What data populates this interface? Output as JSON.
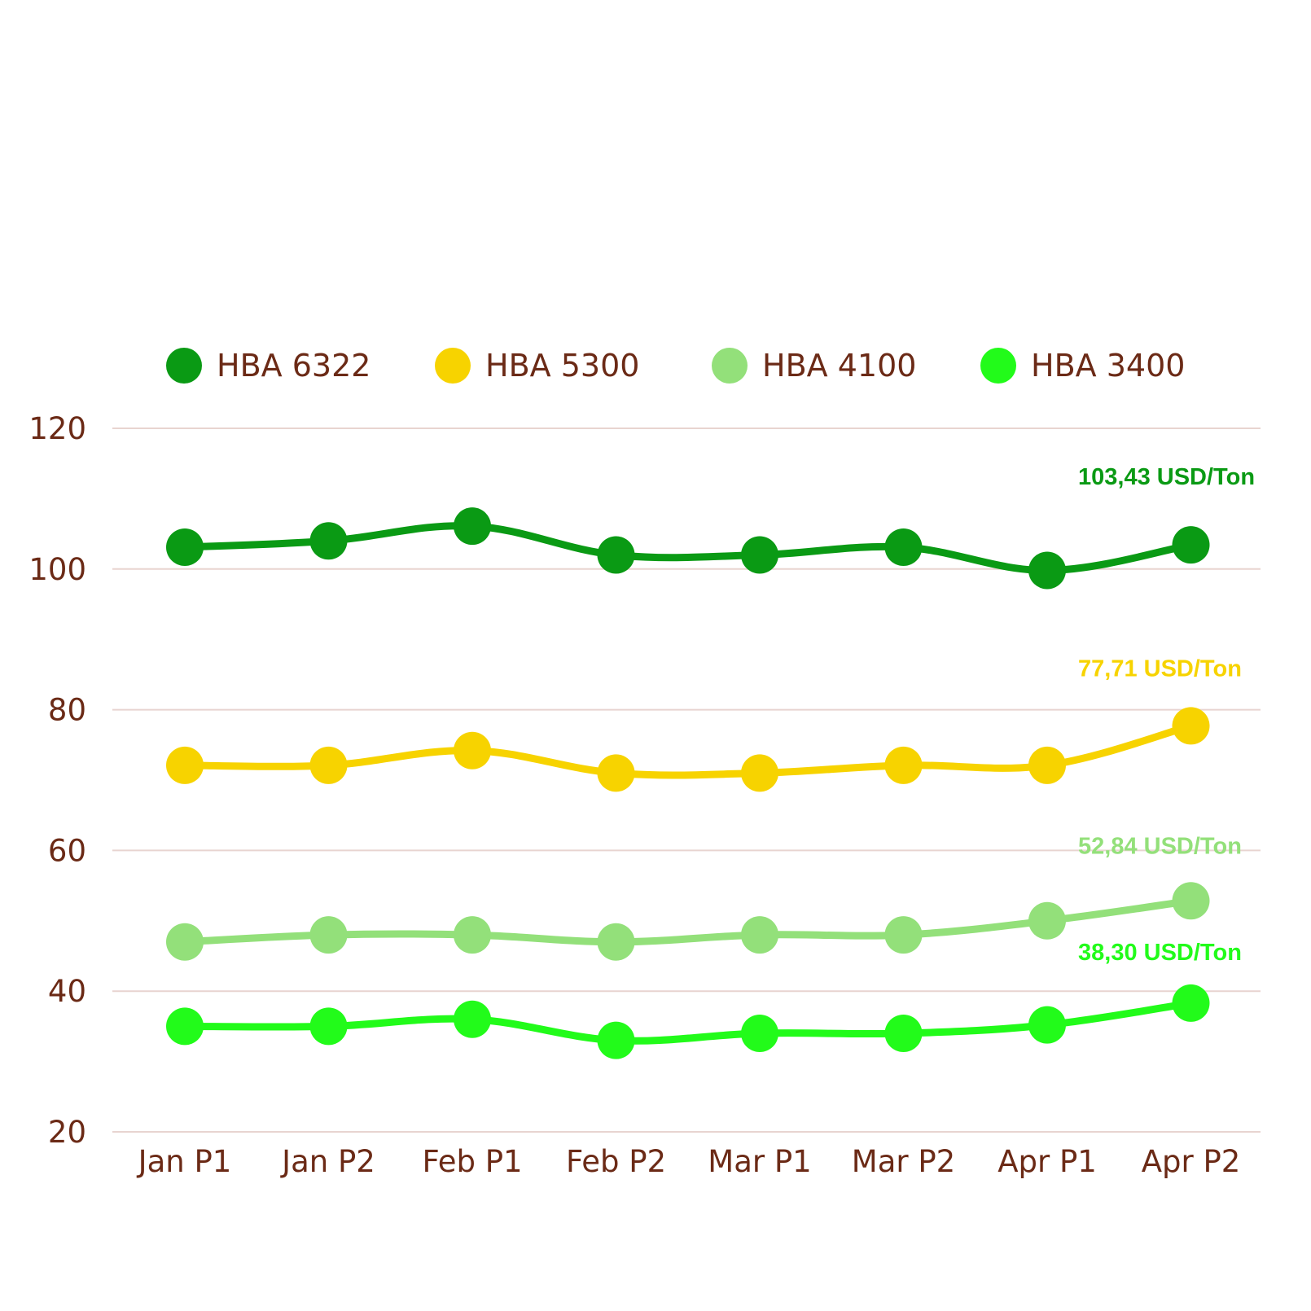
{
  "chart_data": {
    "type": "line",
    "title": "",
    "xlabel": "",
    "ylabel": "",
    "categories": [
      "Jan P1",
      "Jan P2",
      "Feb P1",
      "Feb P2",
      "Mar P1",
      "Mar P2",
      "Apr P1",
      "Apr P2"
    ],
    "ylim": [
      20,
      120
    ],
    "yticks": [
      20,
      40,
      60,
      80,
      100,
      120
    ],
    "grid": true,
    "legend_position": "top",
    "series": [
      {
        "name": "HBA 6322",
        "color": "#0a9a14",
        "values": [
          103.1,
          104.0,
          106.1,
          102.0,
          102.0,
          103.1,
          99.8,
          103.43
        ],
        "end_label": "103,43 USD/Ton"
      },
      {
        "name": "HBA 5300",
        "color": "#f7d300",
        "values": [
          72.1,
          72.1,
          74.2,
          71.0,
          71.0,
          72.1,
          72.1,
          77.71
        ],
        "end_label": "77,71 USD/Ton"
      },
      {
        "name": "HBA 4100",
        "color": "#93e07a",
        "values": [
          47.0,
          48.0,
          48.0,
          47.0,
          48.0,
          48.0,
          50.0,
          52.84
        ],
        "end_label": "52,84 USD/Ton"
      },
      {
        "name": "HBA 3400",
        "color": "#22fb1a",
        "values": [
          35.0,
          35.0,
          36.0,
          33.0,
          34.0,
          34.0,
          35.2,
          38.3
        ],
        "end_label": "38,30 USD/Ton"
      }
    ]
  }
}
